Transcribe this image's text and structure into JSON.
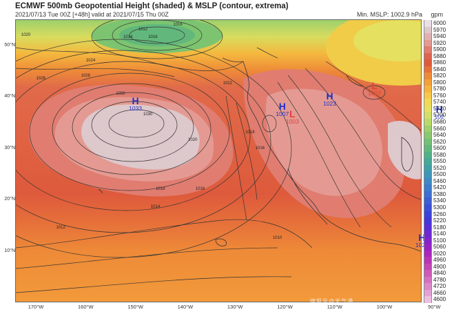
{
  "header": {
    "title": "ECMWF 500mb Geopotential Height (shaded) & MSLP (contour, extrema)",
    "subtitle": "2021/07/13 Tue 00Z [+48h] valid at 2021/07/15 Thu 00Z",
    "min_mslp": "Min. MSLP: 1002.9 hPa",
    "unit": "gpm"
  },
  "axes": {
    "lat_labels": [
      {
        "label": "50°N",
        "lat": 50
      },
      {
        "label": "40°N",
        "lat": 40
      },
      {
        "label": "30°N",
        "lat": 30
      },
      {
        "label": "20°N",
        "lat": 20
      },
      {
        "label": "10°N",
        "lat": 10
      }
    ],
    "lon_labels": [
      {
        "label": "170°W",
        "lon": -170
      },
      {
        "label": "160°W",
        "lon": -160
      },
      {
        "label": "150°W",
        "lon": -150
      },
      {
        "label": "140°W",
        "lon": -140
      },
      {
        "label": "130°W",
        "lon": -130
      },
      {
        "label": "120°W",
        "lon": -120
      },
      {
        "label": "110°W",
        "lon": -110
      },
      {
        "label": "100°W",
        "lon": -100
      },
      {
        "label": "90°W",
        "lon": -90
      }
    ]
  },
  "legend": [
    {
      "label": "6000",
      "color": "#e8e0e6"
    },
    {
      "label": "5970",
      "color": "#ddc8cc"
    },
    {
      "label": "5940",
      "color": "#e0b0b0"
    },
    {
      "label": "5920",
      "color": "#e49a92"
    },
    {
      "label": "5900",
      "color": "#e07d70"
    },
    {
      "label": "5880",
      "color": "#dc6450"
    },
    {
      "label": "5860",
      "color": "#de5a3c"
    },
    {
      "label": "5840",
      "color": "#e6703a"
    },
    {
      "label": "5820",
      "color": "#ee8a38"
    },
    {
      "label": "5800",
      "color": "#f4a038"
    },
    {
      "label": "5780",
      "color": "#f6b43e"
    },
    {
      "label": "5760",
      "color": "#f6c848"
    },
    {
      "label": "5740",
      "color": "#f2d854"
    },
    {
      "label": "5720",
      "color": "#e6e060"
    },
    {
      "label": "5700",
      "color": "#d2e068"
    },
    {
      "label": "5680",
      "color": "#b8da6a"
    },
    {
      "label": "5660",
      "color": "#9ed06c"
    },
    {
      "label": "5640",
      "color": "#88c86e"
    },
    {
      "label": "5620",
      "color": "#74c074"
    },
    {
      "label": "5600",
      "color": "#62b87c"
    },
    {
      "label": "5580",
      "color": "#52b088"
    },
    {
      "label": "5550",
      "color": "#46a896"
    },
    {
      "label": "5520",
      "color": "#40a0a8"
    },
    {
      "label": "5500",
      "color": "#3e96b8"
    },
    {
      "label": "5460",
      "color": "#3e8ac4"
    },
    {
      "label": "5420",
      "color": "#3e7ccc"
    },
    {
      "label": "5380",
      "color": "#3e6ed0"
    },
    {
      "label": "5340",
      "color": "#3e5ed4"
    },
    {
      "label": "5300",
      "color": "#3c50d6"
    },
    {
      "label": "5260",
      "color": "#3a42d8"
    },
    {
      "label": "5220",
      "color": "#4636d8"
    },
    {
      "label": "5180",
      "color": "#5a2ed6"
    },
    {
      "label": "5140",
      "color": "#6e28d2"
    },
    {
      "label": "5100",
      "color": "#8224cc"
    },
    {
      "label": "5060",
      "color": "#9622c4"
    },
    {
      "label": "5020",
      "color": "#aa26bc"
    },
    {
      "label": "4960",
      "color": "#b834b6"
    },
    {
      "label": "4900",
      "color": "#c446b4"
    },
    {
      "label": "4840",
      "color": "#ce5ab8"
    },
    {
      "label": "4780",
      "color": "#d670c0"
    },
    {
      "label": "4720",
      "color": "#dc88c8"
    },
    {
      "label": "4660",
      "color": "#e4a2d4"
    },
    {
      "label": "4600",
      "color": "#eebee2"
    }
  ],
  "extrema": [
    {
      "type": "high",
      "letter": "H",
      "value": "1033",
      "lon": -150,
      "lat": 39
    },
    {
      "type": "high",
      "letter": "H",
      "value": "1023",
      "lon": -111,
      "lat": 40
    },
    {
      "type": "high",
      "letter": "H",
      "value": "1023",
      "lon": -92.5,
      "lat": 12.5
    },
    {
      "type": "high",
      "letter": "H",
      "value": "102",
      "lon": -89,
      "lat": 37.5
    },
    {
      "type": "high",
      "letter": "H",
      "value": "1007",
      "lon": -120.5,
      "lat": 38
    },
    {
      "type": "low",
      "letter": "L",
      "value": "1003",
      "lon": -118.5,
      "lat": 36.5
    },
    {
      "type": "low",
      "letter": "L",
      "value": "1007",
      "lon": -102,
      "lat": 42
    }
  ],
  "isobar_labels": [
    {
      "value": "1012",
      "lon": -148.5,
      "lat": 53
    },
    {
      "value": "1014",
      "lon": -151.5,
      "lat": 51.5
    },
    {
      "value": "1016",
      "lon": -146.5,
      "lat": 51.5
    },
    {
      "value": "1016",
      "lon": -141.5,
      "lat": 54
    },
    {
      "value": "1020",
      "lon": -172,
      "lat": 52
    },
    {
      "value": "1024",
      "lon": -159,
      "lat": 47
    },
    {
      "value": "1026",
      "lon": -169,
      "lat": 43.5
    },
    {
      "value": "1028",
      "lon": -160,
      "lat": 44
    },
    {
      "value": "1032",
      "lon": -153,
      "lat": 40.5
    },
    {
      "value": "1030",
      "lon": -147.5,
      "lat": 36.5
    },
    {
      "value": "1022",
      "lon": -131.5,
      "lat": 42.5
    },
    {
      "value": "1018",
      "lon": -127,
      "lat": 33
    },
    {
      "value": "1016",
      "lon": -125,
      "lat": 30
    },
    {
      "value": "1020",
      "lon": -138.5,
      "lat": 31.5
    },
    {
      "value": "1018",
      "lon": -145,
      "lat": 22
    },
    {
      "value": "1016",
      "lon": -137,
      "lat": 22
    },
    {
      "value": "1014",
      "lon": -146,
      "lat": 18.5
    },
    {
      "value": "1012",
      "lon": -165,
      "lat": 14.5
    },
    {
      "value": "1010",
      "lon": -121.5,
      "lat": 12.5
    }
  ],
  "watermark": "搜狐号@天气通"
}
